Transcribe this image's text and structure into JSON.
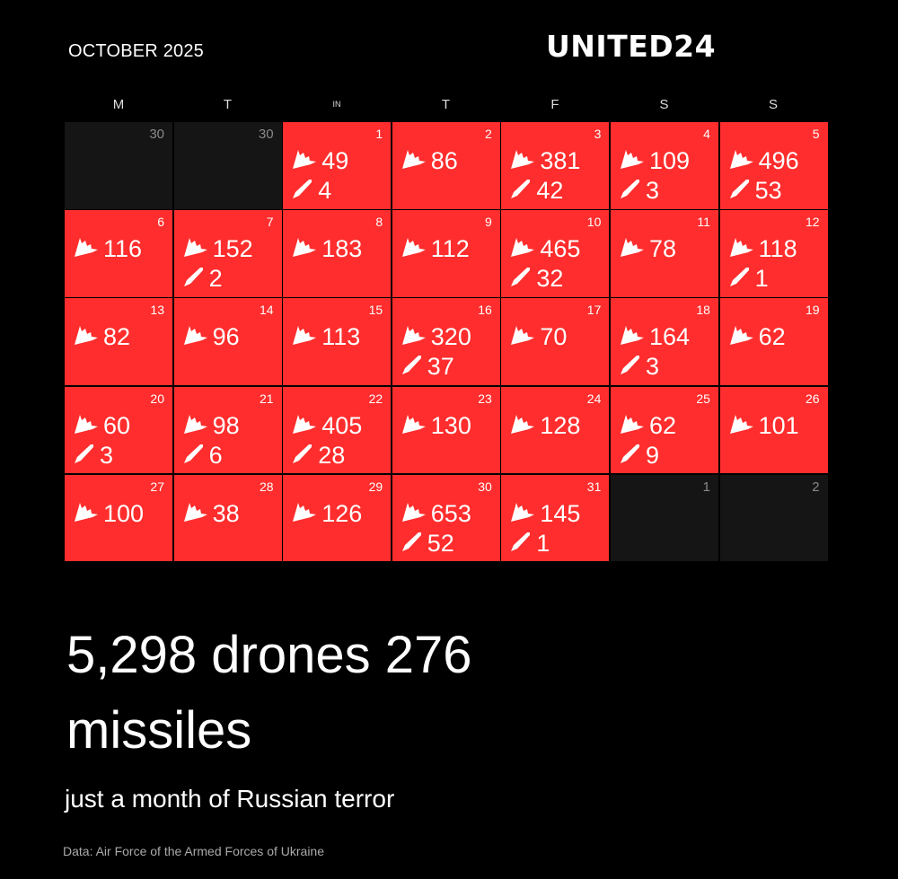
{
  "header": {
    "month_label": "OCTOBER 2025",
    "brand": "UNITED24"
  },
  "weekdays": [
    "M",
    "T",
    "IN",
    "T",
    "F",
    "S",
    "S"
  ],
  "icons": {
    "drone": "drone-icon",
    "missile": "missile-icon"
  },
  "colors": {
    "background": "#000000",
    "attack_day": "#ff2d2d",
    "outside_month": "#151515"
  },
  "calendar": {
    "rows": [
      [
        {
          "day": "30",
          "outside": true
        },
        {
          "day": "30",
          "outside": true
        },
        {
          "day": "1",
          "drones": "49",
          "missiles": "4"
        },
        {
          "day": "2",
          "drones": "86"
        },
        {
          "day": "3",
          "drones": "381",
          "missiles": "42"
        },
        {
          "day": "4",
          "drones": "109",
          "missiles": "3"
        },
        {
          "day": "5",
          "drones": "496",
          "missiles": "53"
        }
      ],
      [
        {
          "day": "6",
          "drones": "116"
        },
        {
          "day": "7",
          "drones": "152",
          "missiles": "2"
        },
        {
          "day": "8",
          "drones": "183"
        },
        {
          "day": "9",
          "drones": "112"
        },
        {
          "day": "10",
          "drones": "465",
          "missiles": "32"
        },
        {
          "day": "11",
          "drones": "78"
        },
        {
          "day": "12",
          "drones": "118",
          "missiles": "1"
        }
      ],
      [
        {
          "day": "13",
          "drones": "82"
        },
        {
          "day": "14",
          "drones": "96"
        },
        {
          "day": "15",
          "drones": "113"
        },
        {
          "day": "16",
          "drones": "320",
          "missiles": "37"
        },
        {
          "day": "17",
          "drones": "70"
        },
        {
          "day": "18",
          "drones": "164",
          "missiles": "3"
        },
        {
          "day": "19",
          "drones": "62"
        }
      ],
      [
        {
          "day": "20",
          "drones": "60",
          "missiles": "3"
        },
        {
          "day": "21",
          "drones": "98",
          "missiles": "6"
        },
        {
          "day": "22",
          "drones": "405",
          "missiles": "28"
        },
        {
          "day": "23",
          "drones": "130"
        },
        {
          "day": "24",
          "drones": "128"
        },
        {
          "day": "25",
          "drones": "62",
          "missiles": "9"
        },
        {
          "day": "26",
          "drones": "101"
        }
      ],
      [
        {
          "day": "27",
          "drones": "100"
        },
        {
          "day": "28",
          "drones": "38"
        },
        {
          "day": "29",
          "drones": "126"
        },
        {
          "day": "30",
          "drones": "653",
          "missiles": "52"
        },
        {
          "day": "31",
          "drones": "145",
          "missiles": "1"
        },
        {
          "day": "1",
          "outside": true
        },
        {
          "day": "2",
          "outside": true
        }
      ]
    ]
  },
  "summary": {
    "headline": "5,298 drones 276 missiles",
    "subline": "just a month of Russian terror",
    "source": "Data: Air Force of the Armed Forces of Ukraine"
  }
}
